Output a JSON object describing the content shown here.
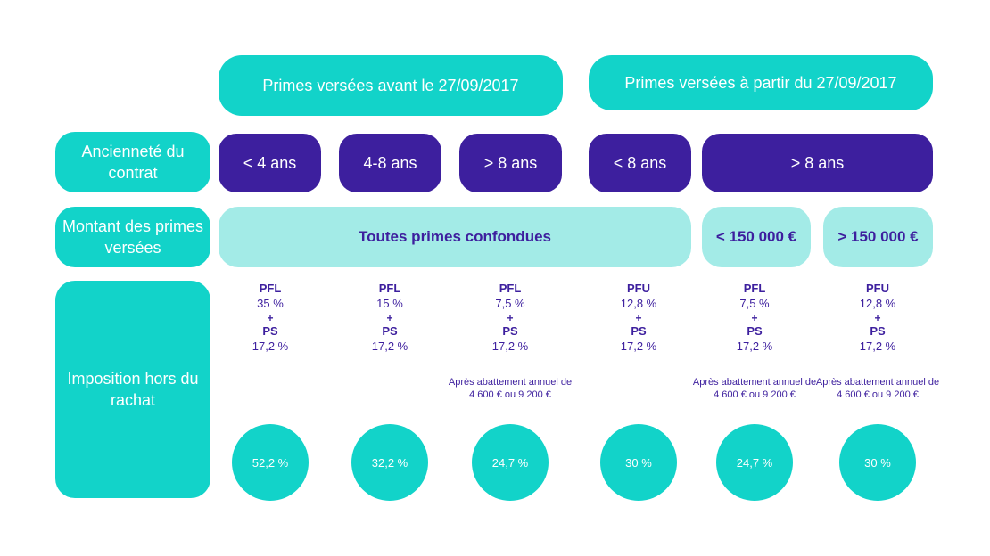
{
  "colors": {
    "teal": "#12d3c9",
    "navy": "#3d1f9e",
    "light_teal": "#a3ebe7"
  },
  "header": {
    "before": "Primes versées avant le 27/09/2017",
    "after": "Primes versées à partir du 27/09/2017"
  },
  "rows": {
    "age_label": "Ancienneté du contrat",
    "amount_label": "Montant des primes versées",
    "tax_label": "Imposition hors du rachat"
  },
  "age": [
    "< 4 ans",
    "4-8 ans",
    "> 8 ans",
    "< 8 ans",
    "> 8 ans"
  ],
  "amounts": {
    "all": "Toutes primes confondues",
    "below": "< 150 000 €",
    "above": "> 150 000 €"
  },
  "taxes": [
    {
      "type": "PFL",
      "rate": "35 %",
      "plus": "+",
      "ps": "PS",
      "ps_rate": "17,2 %",
      "note": "",
      "total": "52,2 %"
    },
    {
      "type": "PFL",
      "rate": "15 %",
      "plus": "+",
      "ps": "PS",
      "ps_rate": "17,2 %",
      "note": "",
      "total": "32,2 %"
    },
    {
      "type": "PFL",
      "rate": "7,5 %",
      "plus": "+",
      "ps": "PS",
      "ps_rate": "17,2 %",
      "note": "Après abattement annuel de 4 600 € ou 9 200 €",
      "total": "24,7 %"
    },
    {
      "type": "PFU",
      "rate": "12,8 %",
      "plus": "+",
      "ps": "PS",
      "ps_rate": "17,2 %",
      "note": "",
      "total": "30 %"
    },
    {
      "type": "PFL",
      "rate": "7,5 %",
      "plus": "+",
      "ps": "PS",
      "ps_rate": "17,2 %",
      "note": "Après abattement annuel de 4 600 € ou 9 200 €",
      "total": "24,7 %"
    },
    {
      "type": "PFU",
      "rate": "12,8 %",
      "plus": "+",
      "ps": "PS",
      "ps_rate": "17,2 %",
      "note": "Après abattement annuel de 4 600 € ou 9 200 €",
      "total": "30 %"
    }
  ]
}
